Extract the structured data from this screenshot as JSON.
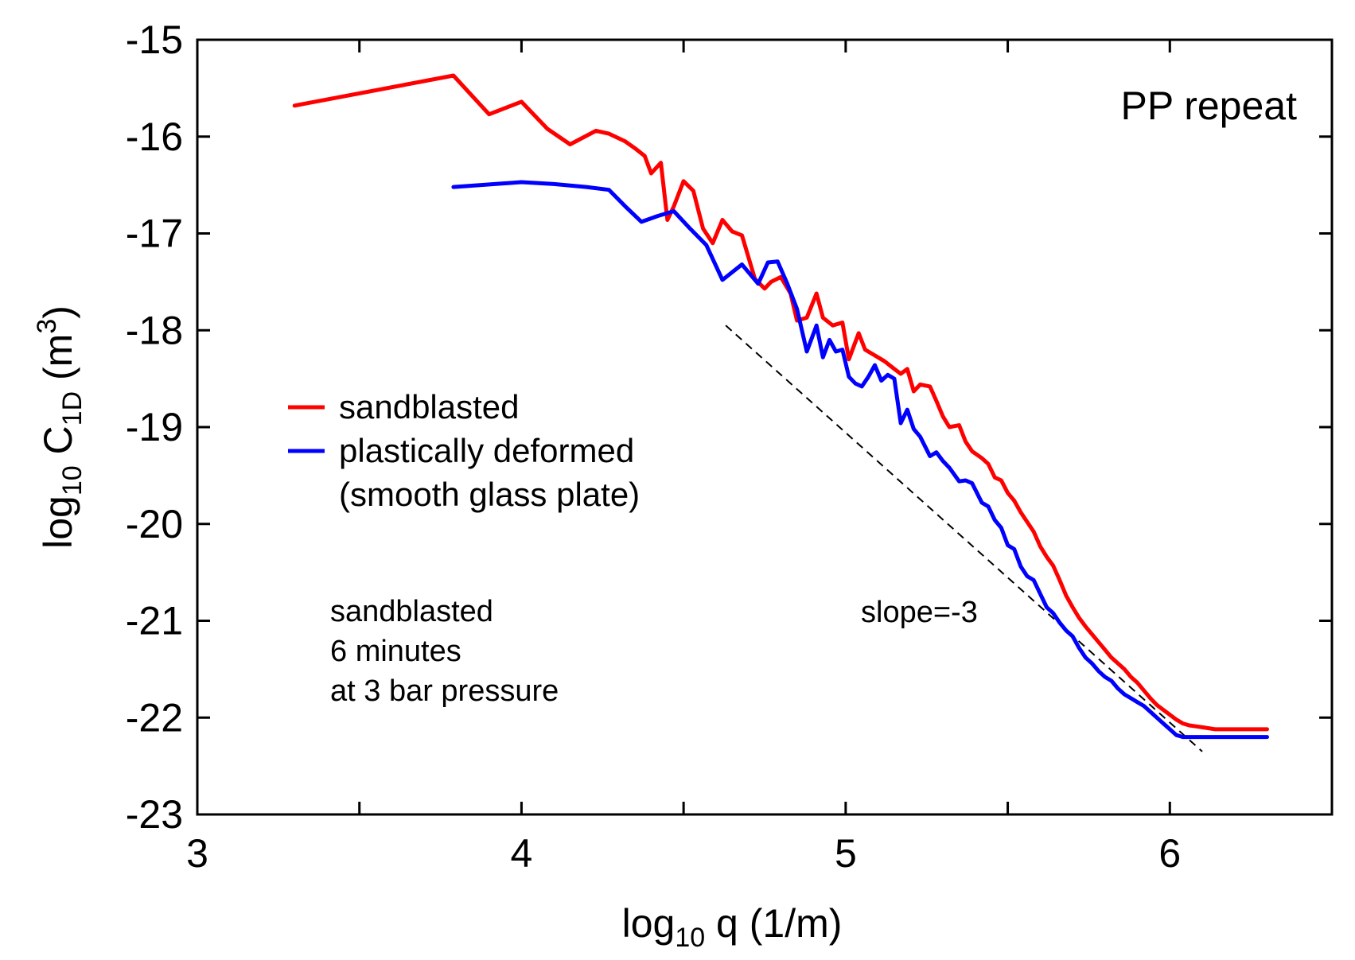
{
  "chart_data": {
    "type": "line",
    "title": "PP repeat",
    "xlabel": {
      "base": "log",
      "sub": "10",
      "rest": " q  (1/m)"
    },
    "ylabel": {
      "base": "log",
      "sub1": "10",
      "mid": " C",
      "sub2": "1D",
      "rest": "  (m",
      "sup": "3",
      "close": ")"
    },
    "xlim": [
      3,
      6.5
    ],
    "ylim": [
      -23,
      -15
    ],
    "xticks": [
      3,
      4,
      5,
      6
    ],
    "yticks": [
      -15,
      -16,
      -17,
      -18,
      -19,
      -20,
      -21,
      -22,
      -23
    ],
    "series": [
      {
        "name": "sandblasted",
        "color": "#ff0000",
        "x": [
          3.3,
          3.79,
          3.9,
          4.0,
          4.08,
          4.15,
          4.23,
          4.27,
          4.32,
          4.35,
          4.38,
          4.4,
          4.43,
          4.45,
          4.47,
          4.5,
          4.53,
          4.56,
          4.59,
          4.62,
          4.65,
          4.68,
          4.72,
          4.75,
          4.77,
          4.8,
          4.83,
          4.85,
          4.88,
          4.91,
          4.93,
          4.96,
          4.99,
          5.01,
          5.04,
          5.06,
          5.08,
          5.1,
          5.12,
          5.15,
          5.17,
          5.19,
          5.21,
          5.23,
          5.26,
          5.28,
          5.3,
          5.32,
          5.35,
          5.37,
          5.39,
          5.42,
          5.44,
          5.46,
          5.48,
          5.5,
          5.52,
          5.54,
          5.56,
          5.58,
          5.6,
          5.62,
          5.64,
          5.66,
          5.68,
          5.7,
          5.72,
          5.74,
          5.76,
          5.78,
          5.8,
          5.82,
          5.84,
          5.86,
          5.88,
          5.9,
          5.92,
          5.94,
          5.96,
          5.98,
          6.0,
          6.02,
          6.04,
          6.06,
          6.08,
          6.1,
          6.12,
          6.14,
          6.16,
          6.18,
          6.2,
          6.22,
          6.24,
          6.26,
          6.28,
          6.3
        ],
        "y": [
          -15.68,
          -15.37,
          -15.77,
          -15.64,
          -15.92,
          -16.08,
          -15.94,
          -15.97,
          -16.05,
          -16.12,
          -16.2,
          -16.38,
          -16.27,
          -16.86,
          -16.72,
          -16.46,
          -16.56,
          -16.95,
          -17.1,
          -16.86,
          -16.98,
          -17.02,
          -17.47,
          -17.57,
          -17.5,
          -17.45,
          -17.62,
          -17.9,
          -17.87,
          -17.62,
          -17.87,
          -17.95,
          -17.92,
          -18.3,
          -18.03,
          -18.2,
          -18.24,
          -18.28,
          -18.32,
          -18.4,
          -18.45,
          -18.4,
          -18.63,
          -18.56,
          -18.58,
          -18.73,
          -18.89,
          -19.0,
          -18.98,
          -19.15,
          -19.25,
          -19.32,
          -19.38,
          -19.52,
          -19.55,
          -19.68,
          -19.76,
          -19.88,
          -19.98,
          -20.08,
          -20.23,
          -20.34,
          -20.43,
          -20.58,
          -20.74,
          -20.86,
          -20.97,
          -21.06,
          -21.14,
          -21.22,
          -21.3,
          -21.38,
          -21.44,
          -21.5,
          -21.58,
          -21.64,
          -21.72,
          -21.8,
          -21.87,
          -21.92,
          -21.97,
          -22.02,
          -22.06,
          -22.08,
          -22.09,
          -22.1,
          -22.11,
          -22.12,
          -22.12,
          -22.12,
          -22.12,
          -22.12,
          -22.12,
          -22.12,
          -22.12,
          -22.12
        ]
      },
      {
        "name": "plastically deformed",
        "color": "#0000ff",
        "x": [
          3.79,
          4.0,
          4.1,
          4.2,
          4.27,
          4.32,
          4.37,
          4.42,
          4.47,
          4.52,
          4.57,
          4.62,
          4.68,
          4.73,
          4.76,
          4.79,
          4.82,
          4.85,
          4.88,
          4.91,
          4.93,
          4.95,
          4.97,
          4.99,
          5.01,
          5.03,
          5.05,
          5.07,
          5.09,
          5.11,
          5.13,
          5.15,
          5.17,
          5.19,
          5.21,
          5.23,
          5.26,
          5.28,
          5.3,
          5.32,
          5.35,
          5.37,
          5.39,
          5.42,
          5.44,
          5.46,
          5.48,
          5.5,
          5.52,
          5.54,
          5.56,
          5.58,
          5.6,
          5.62,
          5.64,
          5.66,
          5.68,
          5.7,
          5.72,
          5.74,
          5.76,
          5.78,
          5.8,
          5.82,
          5.84,
          5.86,
          5.88,
          5.9,
          5.92,
          5.94,
          5.96,
          5.98,
          6.0,
          6.02,
          6.04,
          6.06,
          6.08,
          6.1,
          6.12,
          6.14,
          6.16,
          6.18,
          6.2,
          6.22,
          6.24,
          6.26,
          6.28,
          6.3
        ],
        "y": [
          -16.52,
          -16.47,
          -16.49,
          -16.52,
          -16.55,
          -16.72,
          -16.88,
          -16.82,
          -16.77,
          -16.95,
          -17.12,
          -17.48,
          -17.32,
          -17.52,
          -17.3,
          -17.29,
          -17.52,
          -17.78,
          -18.22,
          -17.95,
          -18.28,
          -18.1,
          -18.22,
          -18.2,
          -18.48,
          -18.55,
          -18.58,
          -18.48,
          -18.36,
          -18.52,
          -18.46,
          -18.5,
          -18.96,
          -18.82,
          -19.02,
          -19.1,
          -19.3,
          -19.26,
          -19.35,
          -19.42,
          -19.56,
          -19.55,
          -19.58,
          -19.78,
          -19.82,
          -19.96,
          -20.04,
          -20.22,
          -20.26,
          -20.44,
          -20.54,
          -20.58,
          -20.72,
          -20.86,
          -20.92,
          -21.02,
          -21.1,
          -21.16,
          -21.28,
          -21.38,
          -21.44,
          -21.52,
          -21.58,
          -21.62,
          -21.7,
          -21.76,
          -21.8,
          -21.84,
          -21.88,
          -21.94,
          -22.0,
          -22.06,
          -22.12,
          -22.18,
          -22.2,
          -22.2,
          -22.2,
          -22.2,
          -22.2,
          -22.2,
          -22.2,
          -22.2,
          -22.2,
          -22.2,
          -22.2,
          -22.2,
          -22.2,
          -22.2
        ]
      }
    ],
    "reference_line": {
      "label": "slope=-3",
      "x": [
        4.63,
        6.1
      ],
      "y": [
        -17.95,
        -22.35
      ],
      "style": "dashed"
    },
    "legend": {
      "position": "center-left",
      "entries": [
        {
          "label": "sandblasted",
          "color": "#ff0000"
        },
        {
          "label": "plastically deformed",
          "color": "#0000ff"
        }
      ],
      "extra_line": "(smooth glass plate)"
    },
    "annotation": {
      "lines": [
        "sandblasted",
        "6 minutes",
        "at 3 bar pressure"
      ]
    }
  }
}
